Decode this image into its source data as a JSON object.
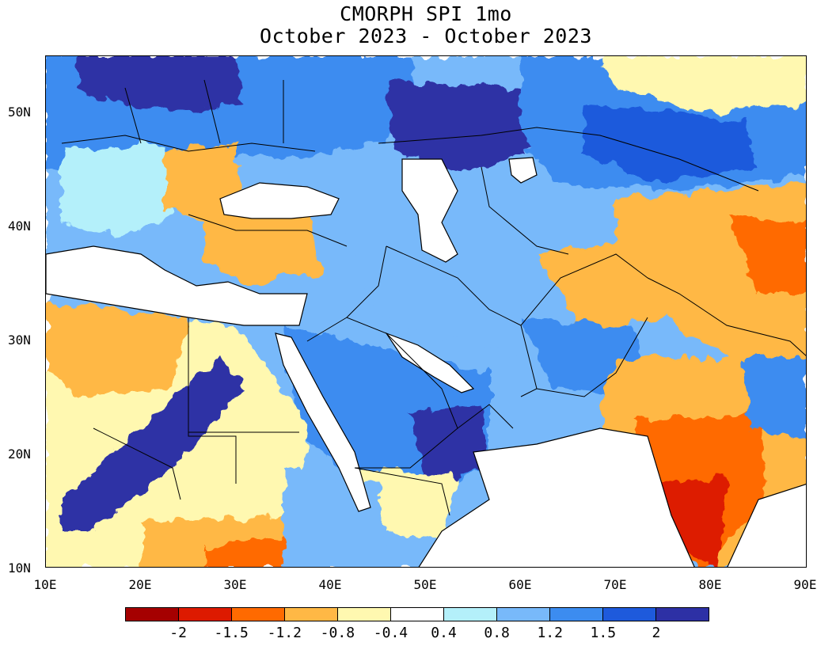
{
  "title": "CMORPH SPI 1mo",
  "subtitle": "October 2023 - October 2023",
  "axes": {
    "x_ticks": [
      "10E",
      "20E",
      "30E",
      "40E",
      "50E",
      "60E",
      "70E",
      "80E",
      "90E"
    ],
    "y_ticks": [
      "50N",
      "40N",
      "30N",
      "20N",
      "10N"
    ]
  },
  "legend": {
    "labels": [
      "-2",
      "-1.5",
      "-1.2",
      "-0.8",
      "-0.4",
      "0.4",
      "0.8",
      "1.2",
      "1.5",
      "2"
    ],
    "colors": [
      "#a50000",
      "#dd1a00",
      "#ff6a00",
      "#ffb845",
      "#fff8b0",
      "#ffffff",
      "#b4f0fa",
      "#78b9fa",
      "#3c8cf0",
      "#1e5adc",
      "#2d30a5"
    ]
  },
  "map": {
    "region": "Middle East and South Asia",
    "extent": {
      "lon": [
        10,
        90
      ],
      "lat": [
        10,
        55
      ]
    },
    "ocean_color": "#ffffff",
    "border_color": "#000000"
  }
}
